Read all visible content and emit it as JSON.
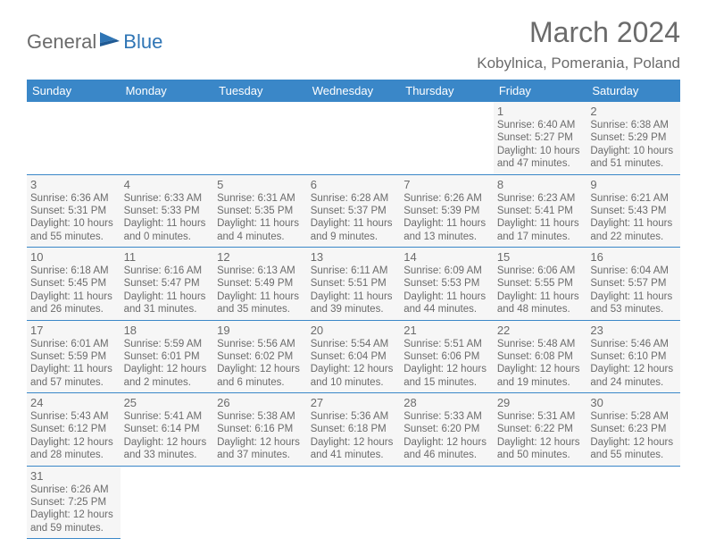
{
  "branding": {
    "text1": "General",
    "text2": "Blue",
    "color_general": "#6b6b6b",
    "color_blue": "#2f75b5"
  },
  "header": {
    "month_title": "March 2024",
    "location": "Kobylnica, Pomerania, Poland"
  },
  "style": {
    "header_bg": "#3a87c8",
    "header_fg": "#ffffff",
    "cell_bg": "#f6f6f6",
    "border_color": "#3a87c8",
    "text_color": "#6b6b6b"
  },
  "weekdays": [
    "Sunday",
    "Monday",
    "Tuesday",
    "Wednesday",
    "Thursday",
    "Friday",
    "Saturday"
  ],
  "weeks": [
    [
      null,
      null,
      null,
      null,
      null,
      {
        "n": "1",
        "sr": "Sunrise: 6:40 AM",
        "ss": "Sunset: 5:27 PM",
        "d1": "Daylight: 10 hours",
        "d2": "and 47 minutes."
      },
      {
        "n": "2",
        "sr": "Sunrise: 6:38 AM",
        "ss": "Sunset: 5:29 PM",
        "d1": "Daylight: 10 hours",
        "d2": "and 51 minutes."
      }
    ],
    [
      {
        "n": "3",
        "sr": "Sunrise: 6:36 AM",
        "ss": "Sunset: 5:31 PM",
        "d1": "Daylight: 10 hours",
        "d2": "and 55 minutes."
      },
      {
        "n": "4",
        "sr": "Sunrise: 6:33 AM",
        "ss": "Sunset: 5:33 PM",
        "d1": "Daylight: 11 hours",
        "d2": "and 0 minutes."
      },
      {
        "n": "5",
        "sr": "Sunrise: 6:31 AM",
        "ss": "Sunset: 5:35 PM",
        "d1": "Daylight: 11 hours",
        "d2": "and 4 minutes."
      },
      {
        "n": "6",
        "sr": "Sunrise: 6:28 AM",
        "ss": "Sunset: 5:37 PM",
        "d1": "Daylight: 11 hours",
        "d2": "and 9 minutes."
      },
      {
        "n": "7",
        "sr": "Sunrise: 6:26 AM",
        "ss": "Sunset: 5:39 PM",
        "d1": "Daylight: 11 hours",
        "d2": "and 13 minutes."
      },
      {
        "n": "8",
        "sr": "Sunrise: 6:23 AM",
        "ss": "Sunset: 5:41 PM",
        "d1": "Daylight: 11 hours",
        "d2": "and 17 minutes."
      },
      {
        "n": "9",
        "sr": "Sunrise: 6:21 AM",
        "ss": "Sunset: 5:43 PM",
        "d1": "Daylight: 11 hours",
        "d2": "and 22 minutes."
      }
    ],
    [
      {
        "n": "10",
        "sr": "Sunrise: 6:18 AM",
        "ss": "Sunset: 5:45 PM",
        "d1": "Daylight: 11 hours",
        "d2": "and 26 minutes."
      },
      {
        "n": "11",
        "sr": "Sunrise: 6:16 AM",
        "ss": "Sunset: 5:47 PM",
        "d1": "Daylight: 11 hours",
        "d2": "and 31 minutes."
      },
      {
        "n": "12",
        "sr": "Sunrise: 6:13 AM",
        "ss": "Sunset: 5:49 PM",
        "d1": "Daylight: 11 hours",
        "d2": "and 35 minutes."
      },
      {
        "n": "13",
        "sr": "Sunrise: 6:11 AM",
        "ss": "Sunset: 5:51 PM",
        "d1": "Daylight: 11 hours",
        "d2": "and 39 minutes."
      },
      {
        "n": "14",
        "sr": "Sunrise: 6:09 AM",
        "ss": "Sunset: 5:53 PM",
        "d1": "Daylight: 11 hours",
        "d2": "and 44 minutes."
      },
      {
        "n": "15",
        "sr": "Sunrise: 6:06 AM",
        "ss": "Sunset: 5:55 PM",
        "d1": "Daylight: 11 hours",
        "d2": "and 48 minutes."
      },
      {
        "n": "16",
        "sr": "Sunrise: 6:04 AM",
        "ss": "Sunset: 5:57 PM",
        "d1": "Daylight: 11 hours",
        "d2": "and 53 minutes."
      }
    ],
    [
      {
        "n": "17",
        "sr": "Sunrise: 6:01 AM",
        "ss": "Sunset: 5:59 PM",
        "d1": "Daylight: 11 hours",
        "d2": "and 57 minutes."
      },
      {
        "n": "18",
        "sr": "Sunrise: 5:59 AM",
        "ss": "Sunset: 6:01 PM",
        "d1": "Daylight: 12 hours",
        "d2": "and 2 minutes."
      },
      {
        "n": "19",
        "sr": "Sunrise: 5:56 AM",
        "ss": "Sunset: 6:02 PM",
        "d1": "Daylight: 12 hours",
        "d2": "and 6 minutes."
      },
      {
        "n": "20",
        "sr": "Sunrise: 5:54 AM",
        "ss": "Sunset: 6:04 PM",
        "d1": "Daylight: 12 hours",
        "d2": "and 10 minutes."
      },
      {
        "n": "21",
        "sr": "Sunrise: 5:51 AM",
        "ss": "Sunset: 6:06 PM",
        "d1": "Daylight: 12 hours",
        "d2": "and 15 minutes."
      },
      {
        "n": "22",
        "sr": "Sunrise: 5:48 AM",
        "ss": "Sunset: 6:08 PM",
        "d1": "Daylight: 12 hours",
        "d2": "and 19 minutes."
      },
      {
        "n": "23",
        "sr": "Sunrise: 5:46 AM",
        "ss": "Sunset: 6:10 PM",
        "d1": "Daylight: 12 hours",
        "d2": "and 24 minutes."
      }
    ],
    [
      {
        "n": "24",
        "sr": "Sunrise: 5:43 AM",
        "ss": "Sunset: 6:12 PM",
        "d1": "Daylight: 12 hours",
        "d2": "and 28 minutes."
      },
      {
        "n": "25",
        "sr": "Sunrise: 5:41 AM",
        "ss": "Sunset: 6:14 PM",
        "d1": "Daylight: 12 hours",
        "d2": "and 33 minutes."
      },
      {
        "n": "26",
        "sr": "Sunrise: 5:38 AM",
        "ss": "Sunset: 6:16 PM",
        "d1": "Daylight: 12 hours",
        "d2": "and 37 minutes."
      },
      {
        "n": "27",
        "sr": "Sunrise: 5:36 AM",
        "ss": "Sunset: 6:18 PM",
        "d1": "Daylight: 12 hours",
        "d2": "and 41 minutes."
      },
      {
        "n": "28",
        "sr": "Sunrise: 5:33 AM",
        "ss": "Sunset: 6:20 PM",
        "d1": "Daylight: 12 hours",
        "d2": "and 46 minutes."
      },
      {
        "n": "29",
        "sr": "Sunrise: 5:31 AM",
        "ss": "Sunset: 6:22 PM",
        "d1": "Daylight: 12 hours",
        "d2": "and 50 minutes."
      },
      {
        "n": "30",
        "sr": "Sunrise: 5:28 AM",
        "ss": "Sunset: 6:23 PM",
        "d1": "Daylight: 12 hours",
        "d2": "and 55 minutes."
      }
    ],
    [
      {
        "n": "31",
        "sr": "Sunrise: 6:26 AM",
        "ss": "Sunset: 7:25 PM",
        "d1": "Daylight: 12 hours",
        "d2": "and 59 minutes."
      },
      null,
      null,
      null,
      null,
      null,
      null
    ]
  ]
}
